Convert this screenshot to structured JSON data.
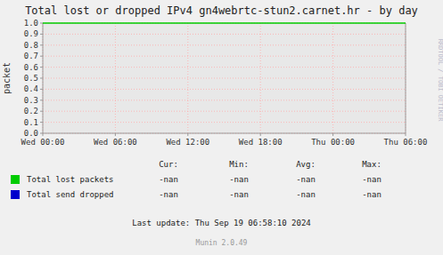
{
  "chart_data": {
    "type": "line",
    "title": "Total lost or dropped IPv4 gn4webrtc-stun2.carnet.hr - by day",
    "ylabel": "packet",
    "xlim": [
      0,
      30
    ],
    "xticks": [
      {
        "value": 0,
        "label": "Wed 00:00"
      },
      {
        "value": 6,
        "label": "Wed 06:00"
      },
      {
        "value": 12,
        "label": "Wed 12:00"
      },
      {
        "value": 18,
        "label": "Wed 18:00"
      },
      {
        "value": 24,
        "label": "Thu 00:00"
      },
      {
        "value": 30,
        "label": "Thu 06:00"
      }
    ],
    "ylim": [
      0.0,
      1.0
    ],
    "yticks": [
      {
        "value": 0.0,
        "label": "0.0"
      },
      0.1,
      0.2,
      0.3,
      0.4,
      0.5,
      0.6,
      0.7,
      0.8,
      0.9,
      {
        "value": 1.0,
        "label": "1.0"
      }
    ],
    "grid": true,
    "reference_line": {
      "y": 1.0,
      "color": "#00cc00"
    },
    "stats_headers": [
      "Cur:",
      "Min:",
      "Avg:",
      "Max:"
    ],
    "series": [
      {
        "name": "Total lost packets",
        "color": "#00cc00",
        "stats": [
          "-nan",
          "-nan",
          "-nan",
          "-nan"
        ]
      },
      {
        "name": "Total send dropped",
        "color": "#0000cc",
        "stats": [
          "-nan",
          "-nan",
          "-nan",
          "-nan"
        ]
      }
    ],
    "last_update": "Last update: Thu Sep 19 06:58:10 2024",
    "version": "Munin 2.0.49",
    "watermark": "RRDTOOL / TOBI OETIKER"
  }
}
